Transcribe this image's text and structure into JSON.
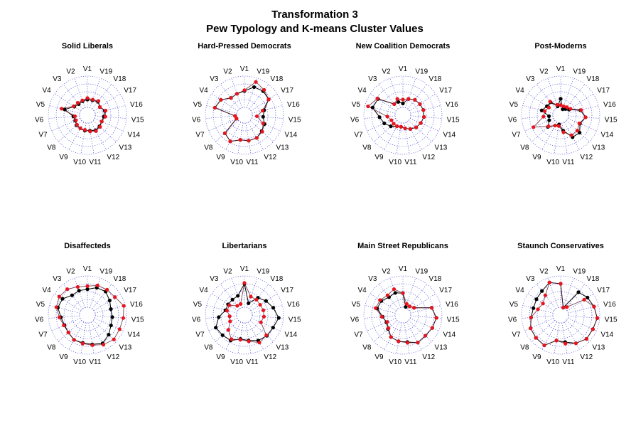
{
  "figure": {
    "title_line1": "Transformation 3",
    "title_line2": "Pew Typology and K-means Cluster Values"
  },
  "chart_data": {
    "type": "radar",
    "spokes": [
      "V1",
      "V2",
      "V3",
      "V4",
      "V5",
      "V6",
      "V7",
      "V8",
      "V9",
      "V10",
      "V11",
      "V12",
      "V13",
      "V14",
      "V15",
      "V16",
      "V17",
      "V18",
      "V19"
    ],
    "r_range": [
      0,
      5
    ],
    "grid": "dotted circles and spokes",
    "colors": {
      "typology": "#e8141e",
      "cluster": "#000000",
      "grid": "#3b3bd6",
      "line": "#5a1a2a"
    },
    "panels": [
      {
        "title": "Solid Liberals",
        "typology": [
          2.2,
          2.0,
          2.0,
          2.1,
          3.4,
          1.6,
          1.6,
          1.8,
          1.9,
          1.9,
          2.1,
          2.3,
          2.2,
          2.0,
          2.3,
          2.4,
          1.9,
          2.3,
          2.1
        ],
        "cluster": [
          2.0,
          1.9,
          1.8,
          2.0,
          3.0,
          1.8,
          1.7,
          1.9,
          1.9,
          2.0,
          2.0,
          2.2,
          2.1,
          2.0,
          2.1,
          2.3,
          1.9,
          2.2,
          2.0
        ]
      },
      {
        "title": "Hard-Pressed Democrats",
        "typology": [
          3.2,
          2.9,
          2.8,
          3.6,
          3.9,
          1.2,
          1.1,
          3.4,
          3.8,
          3.2,
          3.3,
          3.3,
          3.1,
          2.6,
          1.6,
          2.4,
          3.7,
          4.1,
          4.5
        ],
        "cluster": [
          3.1,
          2.9,
          2.8,
          3.6,
          3.9,
          1.2,
          1.1,
          3.4,
          3.8,
          3.2,
          3.3,
          3.3,
          3.0,
          2.8,
          2.4,
          2.6,
          3.7,
          3.9,
          3.8
        ]
      },
      {
        "title": "New Coalition Democrats",
        "typology": [
          2.0,
          2.2,
          1.8,
          3.9,
          4.6,
          2.0,
          1.6,
          1.6,
          1.6,
          1.5,
          1.7,
          2.0,
          2.3,
          2.5,
          2.7,
          2.7,
          2.6,
          2.5,
          2.2
        ],
        "cluster": [
          1.5,
          1.8,
          1.8,
          3.8,
          4.0,
          3.0,
          2.6,
          2.1,
          1.6,
          1.5,
          1.7,
          2.0,
          2.3,
          2.5,
          2.7,
          2.7,
          2.6,
          2.5,
          2.2
        ]
      },
      {
        "title": "Post-Moderns",
        "typology": [
          1.3,
          1.4,
          2.2,
          1.8,
          2.1,
          2.2,
          3.8,
          2.1,
          1.5,
          1.4,
          2.2,
          2.9,
          2.9,
          2.6,
          3.2,
          2.7,
          1.5,
          1.3,
          1.2
        ],
        "cluster": [
          2.1,
          1.2,
          2.1,
          2.1,
          2.5,
          1.5,
          1.6,
          2.2,
          1.5,
          1.2,
          2.0,
          3.2,
          3.3,
          2.7,
          3.2,
          2.6,
          1.3,
          1.0,
          0.8
        ]
      },
      {
        "title": "Disaffecteds",
        "typology": [
          3.7,
          3.8,
          4.2,
          4.3,
          4.1,
          3.6,
          3.3,
          3.3,
          3.6,
          3.7,
          3.9,
          4.3,
          4.6,
          4.5,
          4.6,
          4.8,
          4.2,
          4.1,
          4.0
        ],
        "cluster": [
          3.3,
          3.3,
          3.2,
          3.8,
          3.9,
          3.4,
          3.2,
          3.3,
          3.6,
          3.6,
          3.8,
          4.1,
          3.7,
          3.3,
          3.2,
          3.1,
          3.4,
          3.8,
          3.7
        ]
      },
      {
        "title": "Libertarians",
        "typology": [
          4.1,
          1.5,
          1.5,
          2.3,
          2.3,
          1.9,
          2.0,
          2.8,
          3.5,
          3.2,
          3.4,
          4.0,
          3.8,
          2.3,
          2.5,
          2.5,
          2.4,
          2.5,
          2.5
        ],
        "cluster": [
          4.0,
          2.6,
          2.5,
          2.5,
          2.5,
          3.3,
          4.0,
          3.8,
          3.7,
          3.1,
          3.3,
          3.7,
          3.9,
          4.0,
          4.4,
          3.8,
          3.3,
          2.8,
          1.6
        ]
      },
      {
        "title": "Main Street Republicans",
        "typology": [
          2.8,
          3.5,
          3.2,
          3.5,
          3.6,
          2.7,
          2.2,
          2.5,
          3.2,
          3.4,
          3.6,
          4.0,
          3.9,
          4.1,
          4.3,
          3.8,
          1.7,
          1.4,
          1.5
        ],
        "cluster": [
          2.8,
          3.0,
          2.9,
          3.3,
          3.4,
          2.6,
          2.3,
          2.6,
          3.2,
          3.4,
          3.5,
          4.0,
          3.9,
          4.1,
          4.3,
          3.8,
          1.7,
          1.4,
          1.1
        ]
      },
      {
        "title": "Staunch Conservatives",
        "typology": [
          4.0,
          4.4,
          3.2,
          2.7,
          3.0,
          3.8,
          4.2,
          4.3,
          4.4,
          3.3,
          3.7,
          4.1,
          4.5,
          4.5,
          4.7,
          4.4,
          3.6,
          1.3,
          1.0
        ],
        "cluster": [
          4.0,
          4.4,
          3.9,
          3.7,
          3.6,
          3.8,
          4.2,
          4.3,
          4.4,
          3.3,
          3.5,
          4.1,
          4.5,
          4.5,
          4.7,
          4.4,
          4.1,
          3.7,
          1.0
        ]
      }
    ]
  }
}
